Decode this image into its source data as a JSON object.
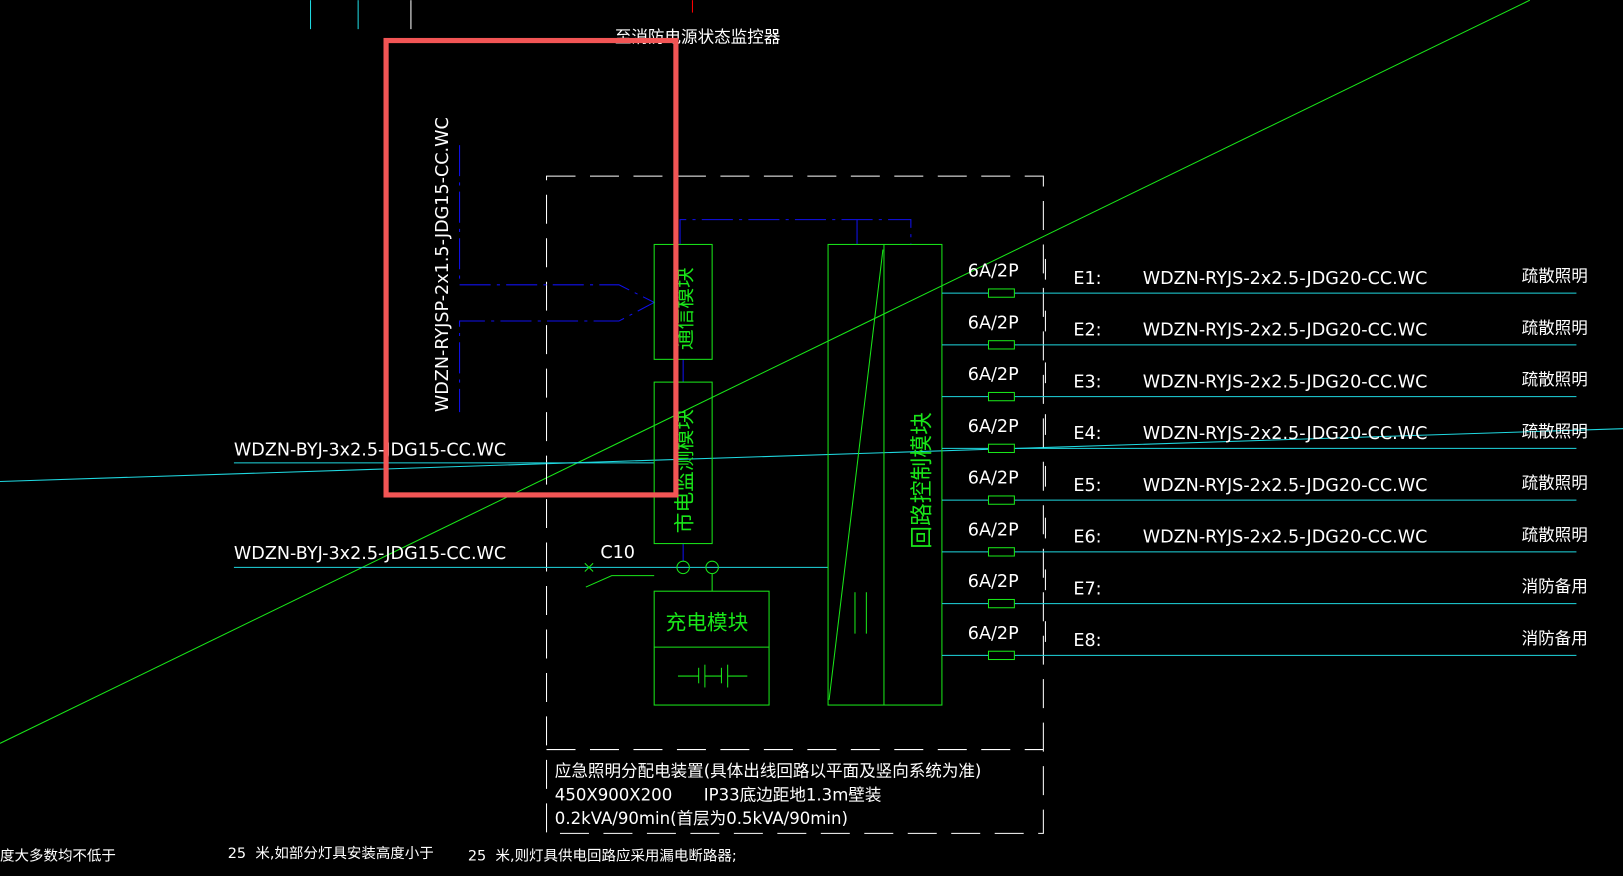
{
  "colors": {
    "background": "#000000",
    "cyan": "#1fd8e0",
    "green": "#19e619",
    "blue": "#1010ee",
    "white": "#ffffff",
    "highlight": "#f25555"
  },
  "top_label": "至消防电源状态监控器",
  "comm_cable": "WDZN-RYJSP-2x1.5-JDG15-CC.WC",
  "input_cable_1": "WDZN-BYJ-3x2.5-JDG15-CC.WC",
  "input_cable_2": "WDZN-BYJ-3x2.5-JDG15-CC.WC",
  "breaker_in": "C10",
  "modules": {
    "comm": "通信模块",
    "mains_monitor": "市电监测模块",
    "charging": "充电模块",
    "loop_control": "回路控制模块"
  },
  "circuits": [
    {
      "breaker": "6A/2P",
      "id": "E1:",
      "cable": "WDZN-RYJS-2x2.5-JDG20-CC.WC",
      "use": "疏散照明"
    },
    {
      "breaker": "6A/2P",
      "id": "E2:",
      "cable": "WDZN-RYJS-2x2.5-JDG20-CC.WC",
      "use": "疏散照明"
    },
    {
      "breaker": "6A/2P",
      "id": "E3:",
      "cable": "WDZN-RYJS-2x2.5-JDG20-CC.WC",
      "use": "疏散照明"
    },
    {
      "breaker": "6A/2P",
      "id": "E4:",
      "cable": "WDZN-RYJS-2x2.5-JDG20-CC.WC",
      "use": "疏散照明"
    },
    {
      "breaker": "6A/2P",
      "id": "E5:",
      "cable": "WDZN-RYJS-2x2.5-JDG20-CC.WC",
      "use": "疏散照明"
    },
    {
      "breaker": "6A/2P",
      "id": "E6:",
      "cable": "WDZN-RYJS-2x2.5-JDG20-CC.WC",
      "use": "疏散照明"
    },
    {
      "breaker": "6A/2P",
      "id": "E7:",
      "cable": "",
      "use": "消防备用"
    },
    {
      "breaker": "6A/2P",
      "id": "E8:",
      "cable": "",
      "use": "消防备用"
    }
  ],
  "device_note": [
    "应急照明分配电装置(具体出线回路以平面及竖向系统为准)",
    "450X900X200      IP33底边距地1.3m壁装",
    "0.2kVA/90min(首层为0.5kVA/90min)"
  ],
  "bottom_notes": [
    "度大多数均不低于",
    "25  米,如部分灯具安装高度小于",
    "25  米,则灯具供电回路应采用漏电断路器;"
  ]
}
